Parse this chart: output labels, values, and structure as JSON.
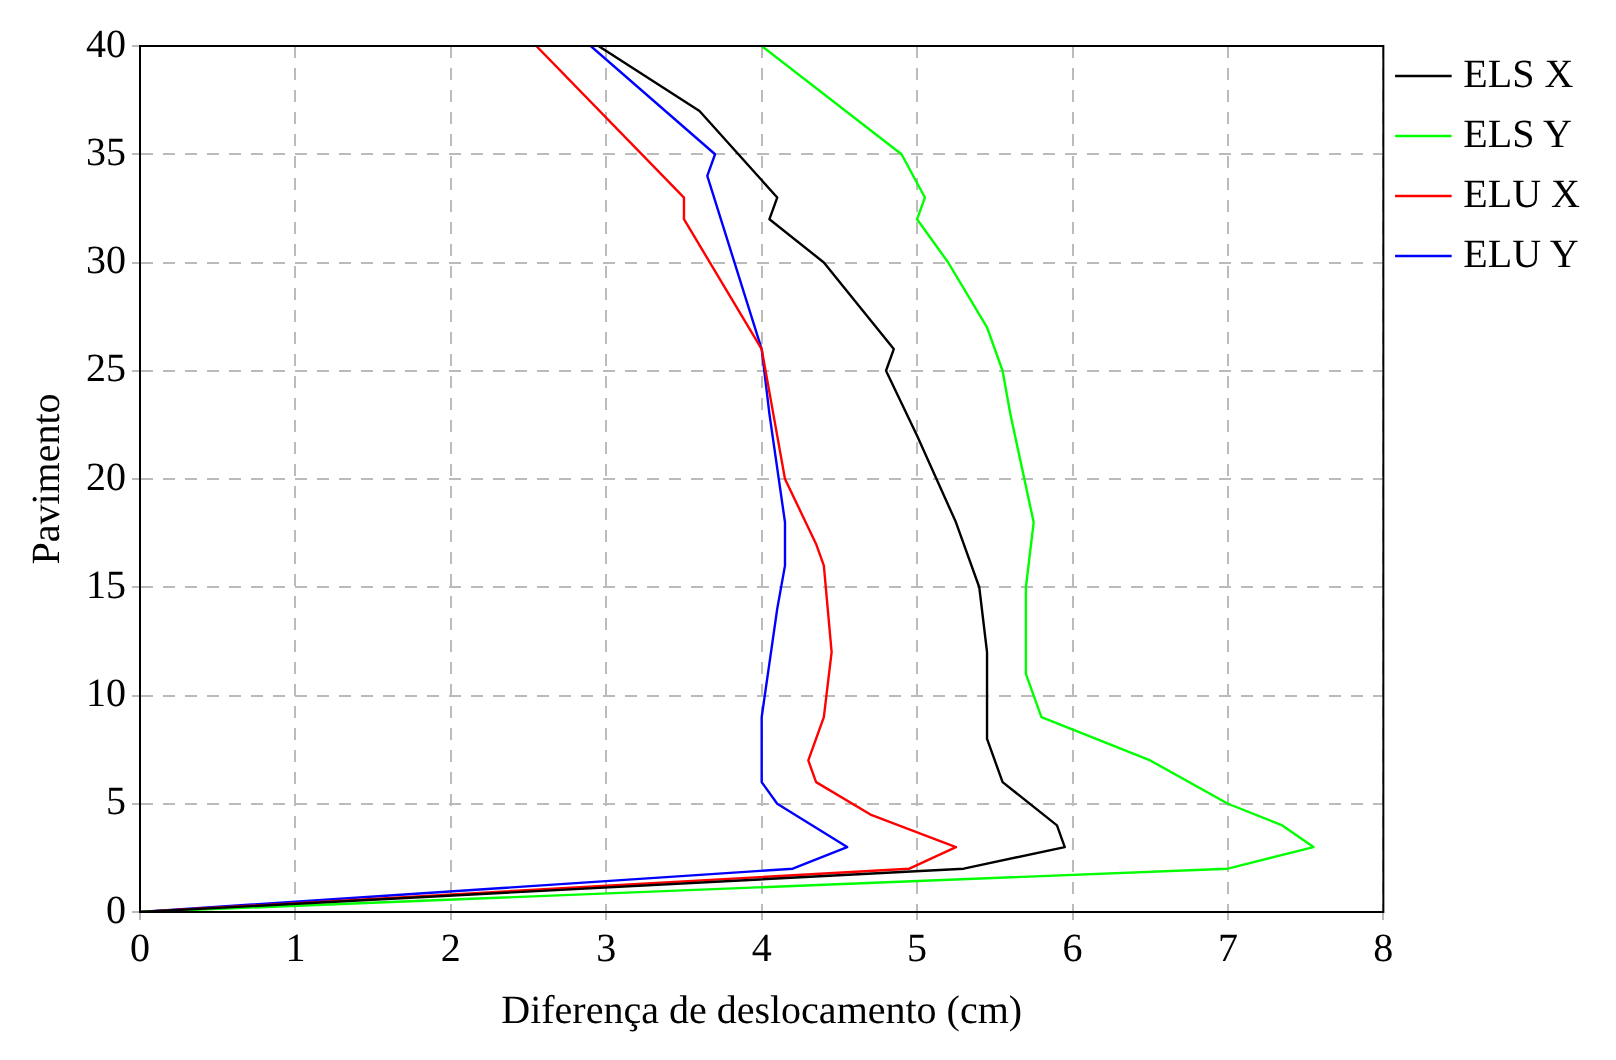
{
  "chart_data": {
    "type": "line",
    "xlabel": "Diferença de deslocamento (cm)",
    "ylabel": "Pavimento",
    "xlim": [
      0,
      8
    ],
    "xticks": [
      0,
      1,
      2,
      3,
      4,
      5,
      6,
      7,
      8
    ],
    "ylim": [
      0,
      40
    ],
    "yticks": [
      0,
      5,
      10,
      15,
      20,
      25,
      30,
      35,
      40
    ],
    "grid": true,
    "legend": "top right",
    "marker": "none",
    "line_style": "solid",
    "series": [
      {
        "name": "ELS X",
        "color": "#000000",
        "x": [
          0,
          5.3,
          5.95,
          5.9,
          5.55,
          5.45,
          5.45,
          5.4,
          5.25,
          5,
          4.8,
          4.85,
          4.4,
          4.05,
          4.1,
          3.6,
          2.95
        ],
        "values": [
          0,
          2,
          3,
          4,
          6,
          8,
          12,
          15,
          18,
          22,
          25,
          26,
          30,
          32,
          33,
          37,
          40
        ]
      },
      {
        "name": "ELS Y",
        "color": "#00ff00",
        "x": [
          0,
          7,
          7.55,
          7.35,
          7,
          6.5,
          5.8,
          5.7,
          5.7,
          5.75,
          5.6,
          5.55,
          5.45,
          5.2,
          5,
          5.05,
          4.9,
          4
        ],
        "values": [
          0,
          2,
          3,
          4,
          5,
          7,
          9,
          11,
          15,
          18,
          23,
          25,
          27,
          30,
          32,
          33,
          35,
          40
        ]
      },
      {
        "name": "ELU X",
        "color": "#ff0000",
        "x": [
          0,
          4.95,
          5.25,
          4.7,
          4.35,
          4.3,
          4.4,
          4.45,
          4.4,
          4.35,
          4.15,
          4.05,
          4,
          3.5,
          3.5,
          2.55
        ],
        "values": [
          0,
          2,
          3,
          4.5,
          6,
          7,
          9,
          12,
          16,
          17,
          20,
          24,
          26,
          32,
          33,
          40
        ]
      },
      {
        "name": "ELU Y",
        "color": "#0000ff",
        "x": [
          0,
          4.2,
          4.55,
          4.1,
          4,
          4,
          4.1,
          4.15,
          4.15,
          4.05,
          4,
          3.65,
          3.7,
          2.9
        ],
        "values": [
          0,
          2,
          3,
          5,
          6,
          9,
          14,
          16,
          18,
          23,
          26,
          34,
          35,
          40
        ]
      }
    ]
  }
}
